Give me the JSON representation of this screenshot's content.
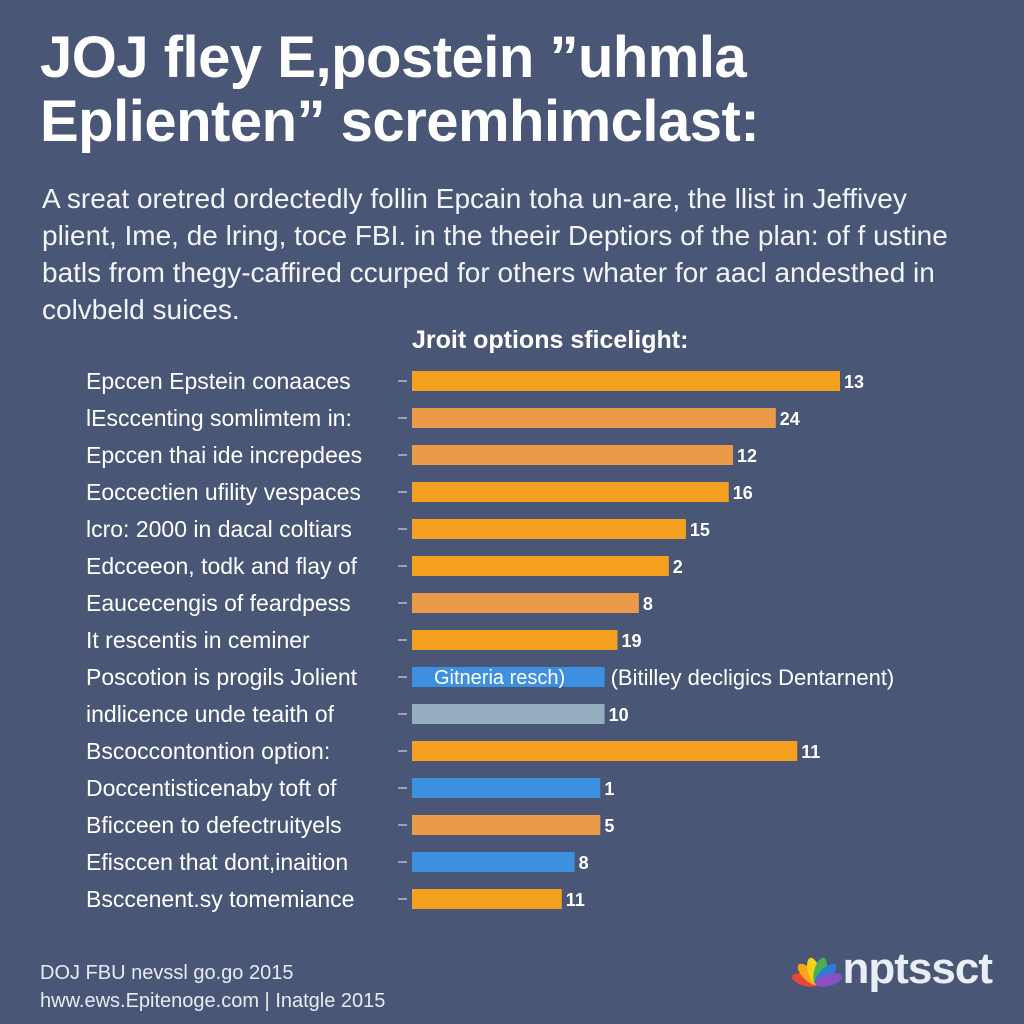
{
  "title": {
    "line1": "JOJ fley E,postein ”uhmla",
    "line2": "Eplienten” scremhimclast:"
  },
  "subtitle": {
    "line1": "A sreat oretred ordectedly follin Epcain toha un-are, the llist in Jeffivey",
    "line2": "plient, Ime,  de lring, toce FBI. in the theeir Deptiors of the plan: of f ustine",
    "line3": "batls from thegy-caffired ccurped for others whater for aacl andesthed in",
    "line4": "colvbeld suices."
  },
  "chart_data": {
    "type": "bar",
    "orientation": "horizontal",
    "title": "Jroit options sficelight:",
    "xlim": [
      0,
      1
    ],
    "categories": [
      "Epccen Epstein conaaces",
      "lEsccenting somlimtem in:",
      "Epccen thai ide increpdees",
      "Eoccectien ufility vespaces",
      "lcro: 2000 in dacal coltiars",
      "Edcceeon, todk and flay of",
      "Eaucecengis of feardpess",
      "It rescentis in ceminer",
      "Poscotion is progils Jolient",
      "indlicence unde teaith of",
      "Bscoccontontion option:",
      "Doccentisticenaby toft of",
      "Bficceen to defectruityels",
      "Efisccen that dont,inaition",
      "Bsccenent.sy tomemiance"
    ],
    "values": [
      1.0,
      0.85,
      0.75,
      0.74,
      0.64,
      0.6,
      0.53,
      0.48,
      0.45,
      0.45,
      0.9,
      0.44,
      0.44,
      0.38,
      0.35
    ],
    "value_labels": [
      "13",
      "24",
      "12",
      "16",
      "15",
      "2",
      "8",
      "19",
      "",
      "10",
      "11",
      "1",
      "5",
      "8",
      "11"
    ],
    "colors": [
      "#f5a020",
      "#eb9a4a",
      "#eb9a4a",
      "#f5a020",
      "#f5a020",
      "#f5a020",
      "#eb9a4a",
      "#f5a020",
      "#3d8fe0",
      "#94aebf",
      "#f5a020",
      "#3d8fe0",
      "#eb9a4a",
      "#3d8fe0",
      "#f5a020"
    ],
    "bar_inner_text": [
      "",
      "",
      "",
      "",
      "",
      "",
      "",
      "",
      "Gitneria resch)",
      "",
      "",
      "",
      "",
      "",
      ""
    ],
    "annotations": [
      "",
      "",
      "",
      "",
      "",
      "",
      "",
      "",
      "(Bitilley decligics Dentarnent)",
      "",
      "",
      "",
      "",
      "",
      ""
    ]
  },
  "footer": {
    "line1": "DOJ FBU nevssl go.go 2015",
    "line2": "hww.ews.Epitenoge.com  |  Inatgle 2015"
  },
  "logo": {
    "text": "nptssct",
    "colors": [
      "#e8473b",
      "#f7a31c",
      "#f6d118",
      "#4cae4f",
      "#2c7bd6",
      "#8a4fc4"
    ]
  }
}
